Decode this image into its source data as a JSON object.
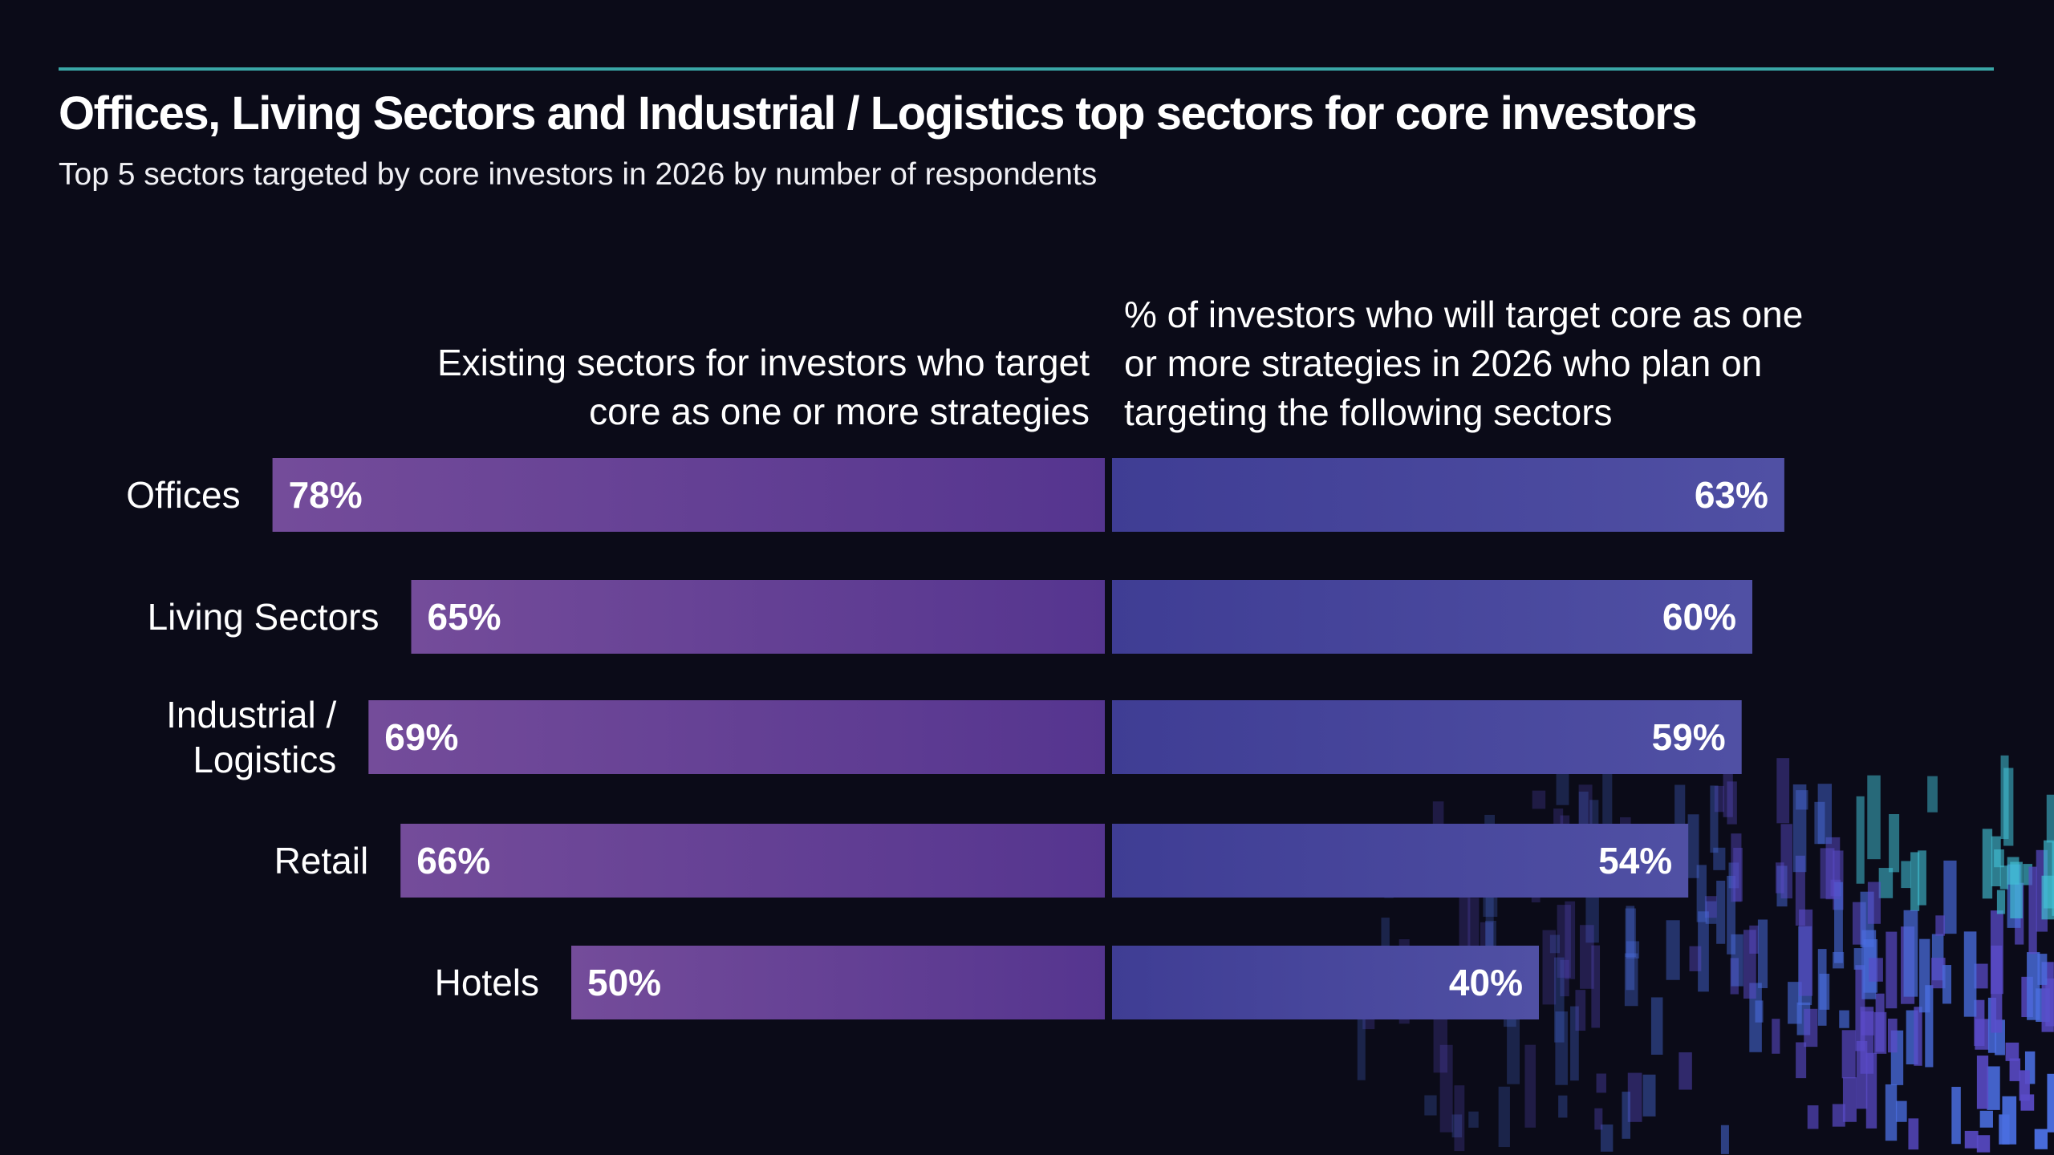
{
  "title": "Offices, Living Sectors and Industrial / Logistics top sectors for core investors",
  "subtitle": "Top 5 sectors targeted by core investors in 2026 by number of respondents",
  "colors": {
    "background": "#0b0b18",
    "accent_line": "#3aa6a6",
    "left_bar_start": "#744c9a",
    "left_bar_end": "#55358f",
    "right_bar_start": "#3f3d94",
    "right_bar_end": "#5050a4"
  },
  "chart_data": {
    "type": "bar",
    "orientation": "horizontal-diverging",
    "categories": [
      [
        "Offices"
      ],
      [
        "Living Sectors"
      ],
      [
        "Industrial /",
        "Logistics"
      ],
      [
        "Retail"
      ],
      [
        "Hotels"
      ]
    ],
    "series": [
      {
        "name": "Existing sectors for investors who target core as one or more strategies",
        "name_lines": [
          "Existing sectors for investors who target",
          "core as one or more strategies"
        ],
        "values": [
          78,
          65,
          69,
          66,
          50
        ],
        "labels": [
          "78%",
          "65%",
          "69%",
          "66%",
          "50%"
        ]
      },
      {
        "name": "% of investors who will target core as one or more strategies in 2026 who plan on targeting the following sectors",
        "name_lines": [
          "% of investors who will target core as one",
          "or more strategies in 2026 who plan on",
          "targeting the following sectors"
        ],
        "values": [
          63,
          60,
          59,
          54,
          40
        ],
        "labels": [
          "63%",
          "60%",
          "59%",
          "54%",
          "40%"
        ]
      }
    ],
    "unit": "%",
    "xlim": [
      0,
      100
    ],
    "grid": false,
    "legend": "none"
  }
}
